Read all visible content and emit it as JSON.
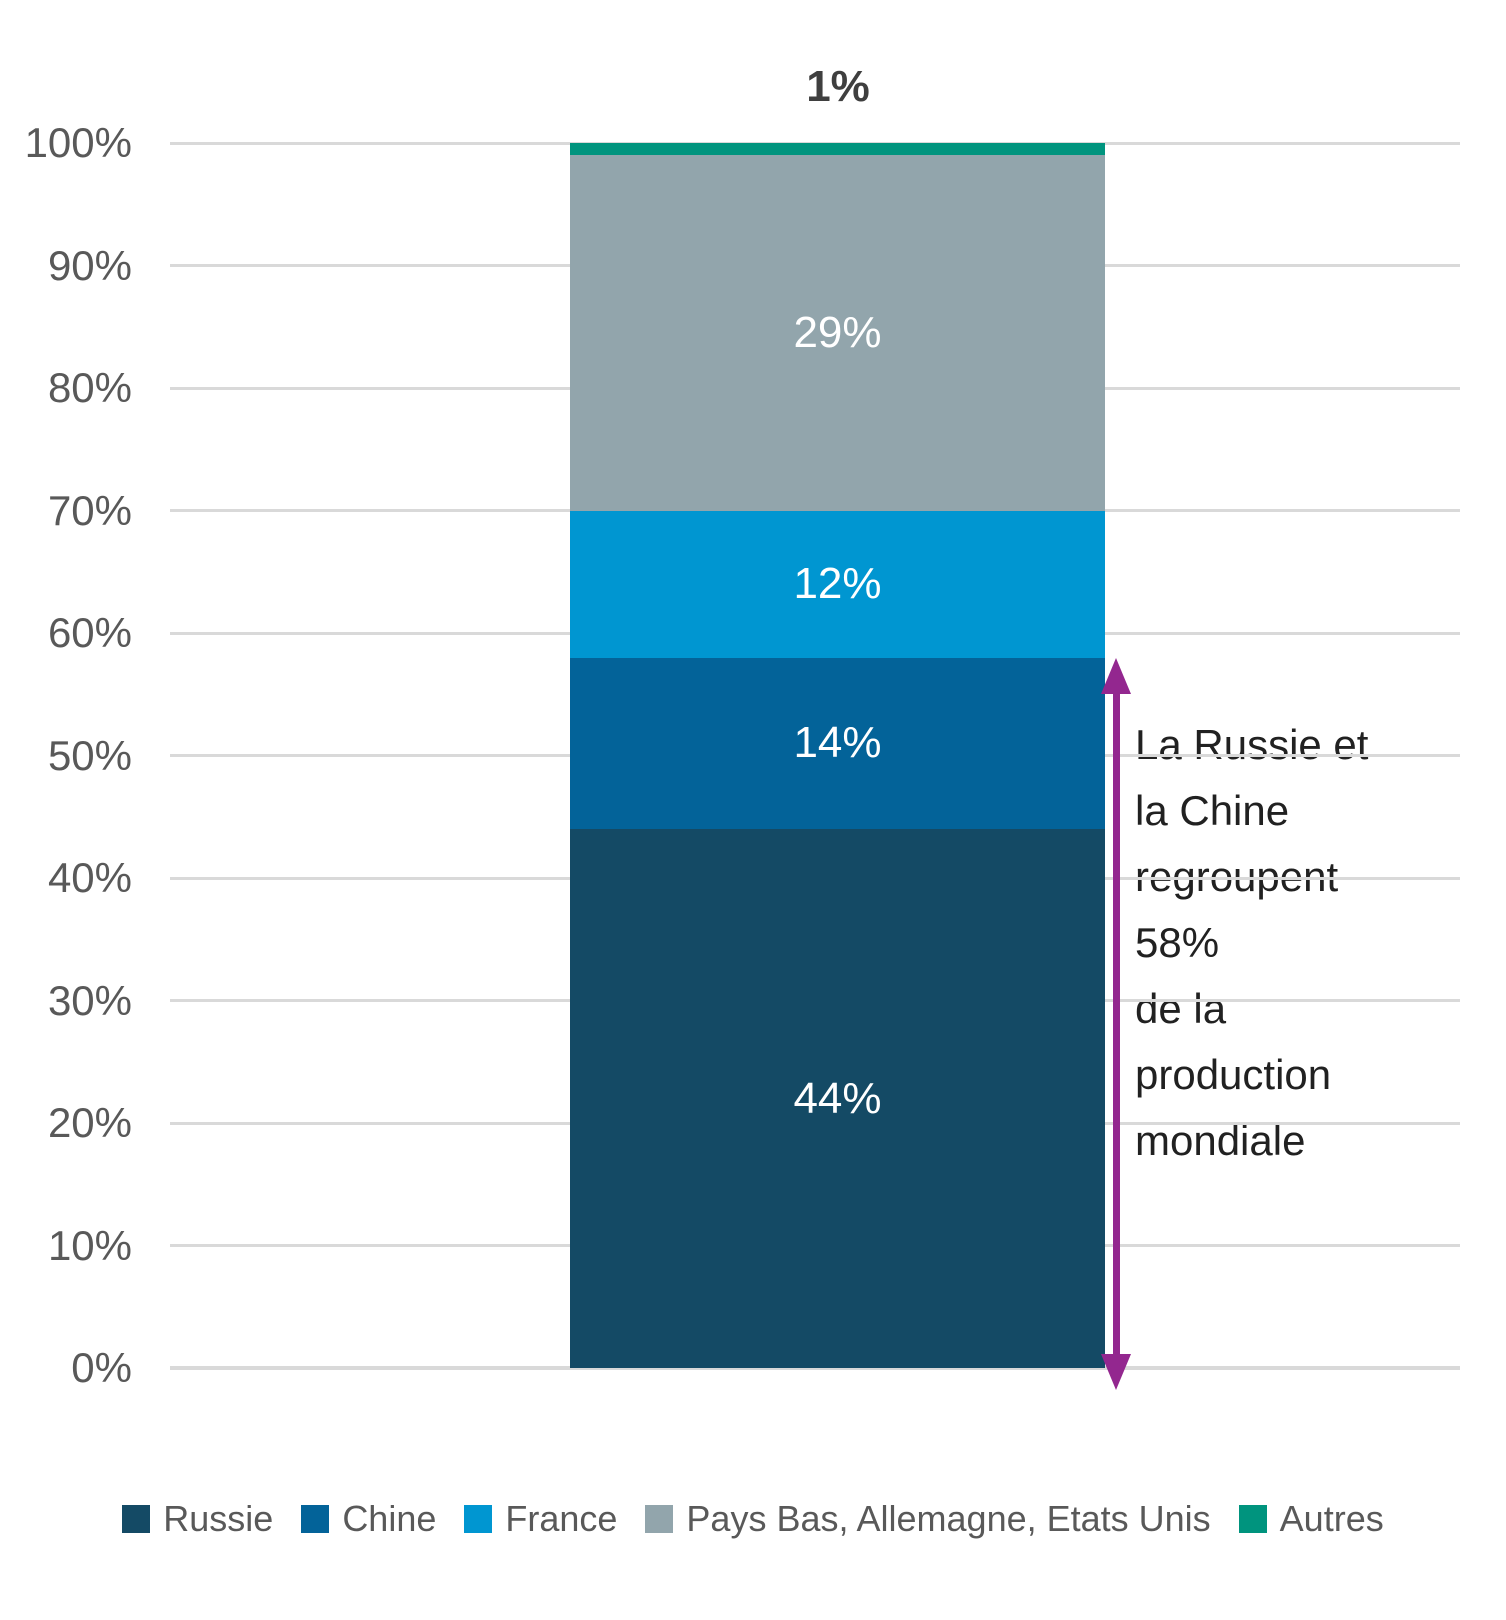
{
  "chart_data": {
    "type": "bar",
    "stacked": true,
    "percent": true,
    "title": "",
    "xlabel": "",
    "ylabel": "",
    "ylim": [
      0,
      100
    ],
    "grid": true,
    "legend_position": "bottom",
    "y_ticks": [
      "0%",
      "10%",
      "20%",
      "30%",
      "40%",
      "50%",
      "60%",
      "70%",
      "80%",
      "90%",
      "100%"
    ],
    "series": [
      {
        "name": "Russie",
        "value": 44,
        "data_label": "44%",
        "color": "#144A65"
      },
      {
        "name": "Chine",
        "value": 14,
        "data_label": "14%",
        "color": "#036399"
      },
      {
        "name": "France",
        "value": 12,
        "data_label": "12%",
        "color": "#0096D1"
      },
      {
        "name": "Pays Bas, Allemagne, Etats Unis",
        "value": 29,
        "data_label": "29%",
        "color": "#92A5AC"
      },
      {
        "name": "Autres",
        "value": 1,
        "data_label": "1%",
        "color": "#00947E",
        "label_position": "outside-top"
      }
    ]
  },
  "annotation": {
    "text": "La Russie et\nla Chine\nregroupent\n58%\nde la\nproduction\nmondiale",
    "arrow": {
      "from_percent": 0,
      "to_percent": 58,
      "color": "#93278F"
    }
  },
  "colors": {
    "background": "#FFFFFF",
    "grid": "#D9D9D9",
    "axis_text": "#595959",
    "legend_text": "#595959",
    "data_label_text": "#FFFFFF",
    "outside_label_text": "#3F3F3F",
    "annotation_text": "#212121"
  }
}
